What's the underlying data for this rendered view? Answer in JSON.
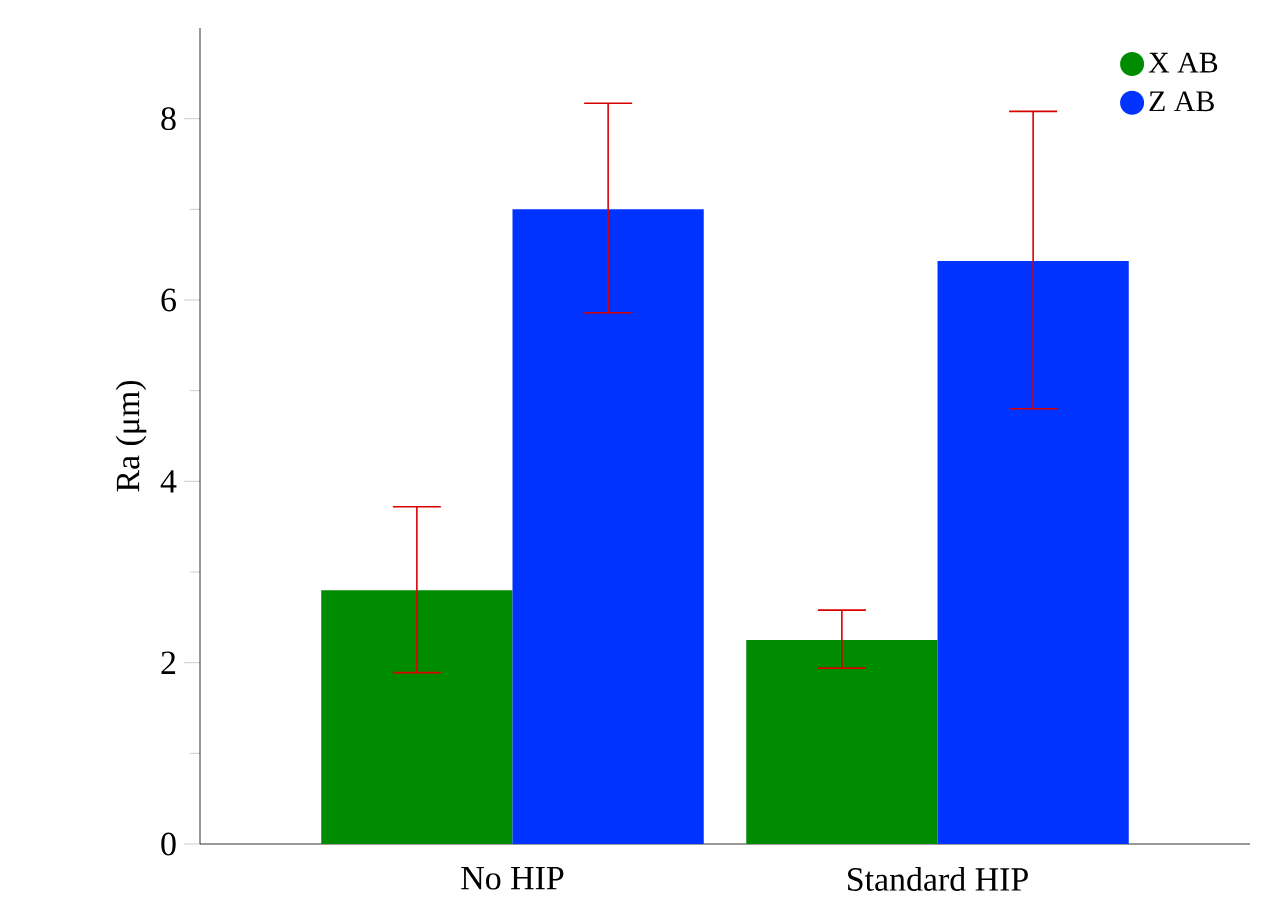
{
  "chart_data": {
    "type": "bar",
    "ylabel": "Ra (μm)",
    "categories": [
      "No HIP",
      "Standard HIP"
    ],
    "series": [
      {
        "name": "X AB",
        "color": "#008c00",
        "values": [
          2.8,
          2.25
        ],
        "errors": [
          [
            1.89,
            3.72
          ],
          [
            1.94,
            2.58
          ]
        ]
      },
      {
        "name": "Z AB",
        "color": "#0033ff",
        "values": [
          7.0,
          6.43
        ],
        "errors": [
          [
            5.86,
            8.17
          ],
          [
            4.8,
            8.08
          ]
        ]
      }
    ],
    "ylim": [
      0,
      9
    ],
    "yticks": [
      0,
      2,
      4,
      6,
      8
    ],
    "legend": "top right",
    "grid": false
  }
}
